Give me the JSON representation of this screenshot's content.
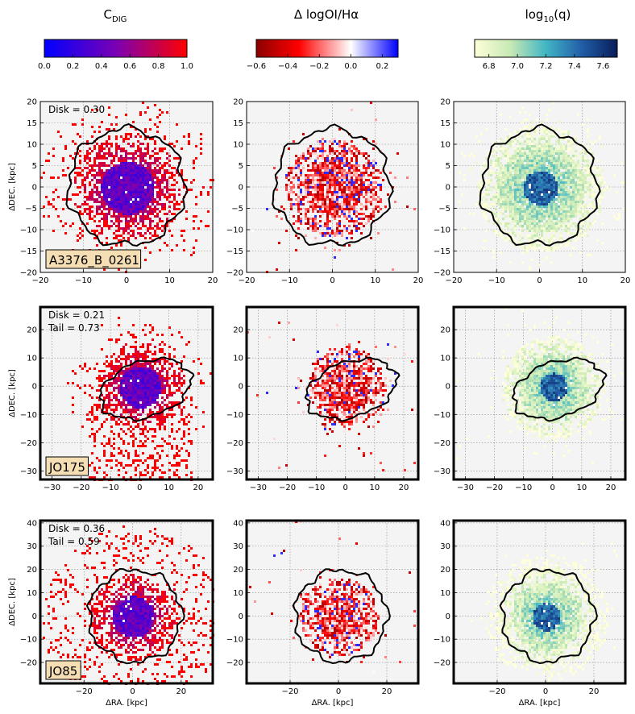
{
  "figure": {
    "columns": [
      {
        "title_main": "C",
        "title_sub": "DIG",
        "title_tail": "",
        "colorbar": {
          "stops": [
            "#0000ff",
            "#7a00b5",
            "#ff0000"
          ],
          "ticks": [
            {
              "label": "0.0",
              "value": 0.0
            },
            {
              "label": "0.2",
              "value": 0.2
            },
            {
              "label": "0.4",
              "value": 0.4
            },
            {
              "label": "0.6",
              "value": 0.6
            },
            {
              "label": "0.8",
              "value": 0.8
            },
            {
              "label": "1.0",
              "value": 1.0
            }
          ],
          "range": [
            0.0,
            1.0
          ]
        }
      },
      {
        "title_main": "Δ logOI/Hα",
        "title_sub": "",
        "title_tail": "",
        "colorbar": {
          "stops": [
            "#8b0000",
            "#ff0000",
            "#ffffff",
            "#0000ff"
          ],
          "stop_positions": [
            0.0,
            0.3,
            0.667,
            1.0
          ],
          "ticks": [
            {
              "label": "−0.6",
              "value": -0.6
            },
            {
              "label": "−0.4",
              "value": -0.4
            },
            {
              "label": "−0.2",
              "value": -0.2
            },
            {
              "label": "0.0",
              "value": 0.0
            },
            {
              "label": "0.2",
              "value": 0.2
            }
          ],
          "range": [
            -0.6,
            0.3
          ]
        }
      },
      {
        "title_main": "log",
        "title_sub": "10",
        "title_tail": "(q)",
        "colorbar": {
          "stops": [
            "#ffffd9",
            "#c7e9b4",
            "#41b6c4",
            "#225ea8",
            "#081d58"
          ],
          "ticks": [
            {
              "label": "6.8",
              "value": 6.8
            },
            {
              "label": "7.0",
              "value": 7.0
            },
            {
              "label": "7.2",
              "value": 7.2
            },
            {
              "label": "7.4",
              "value": 7.4
            },
            {
              "label": "7.6",
              "value": 7.6
            }
          ],
          "range": [
            6.7,
            7.7
          ]
        }
      }
    ],
    "xlabel": "ΔRA. [kpc]",
    "ylabel": "ΔDEC. [kpc]"
  },
  "chart_data": [
    {
      "type": "heatmap",
      "galaxy": "A3376_B_0261",
      "annotation": [
        "Disk = 0.30"
      ],
      "xlim": [
        -20,
        20
      ],
      "ylim": [
        -20,
        20
      ],
      "xticks": [
        -20,
        -10,
        0,
        10,
        20
      ],
      "yticks": [
        -20,
        -15,
        -10,
        -5,
        0,
        5,
        10,
        15,
        20
      ],
      "contour": {
        "shape": "circle",
        "center": [
          0,
          0
        ],
        "radius": 13.5,
        "angle": 0
      },
      "emission_center": [
        0,
        0
      ],
      "cdig_disk_mean": 0.3,
      "delta_oi_ha_disk_mean": -0.45,
      "log_q_disk_mean": 7.05,
      "thick_frame": false
    },
    {
      "type": "heatmap",
      "galaxy": "JO175",
      "annotation": [
        "Disk = 0.21",
        "Tail = 0.73"
      ],
      "xlim": [
        -34,
        25
      ],
      "ylim": [
        -33,
        28
      ],
      "xticks": [
        -30,
        -20,
        -10,
        0,
        10,
        20
      ],
      "yticks": [
        -30,
        -20,
        -10,
        0,
        10,
        20
      ],
      "contour": {
        "shape": "ellipse",
        "center": [
          2,
          -1
        ],
        "rx": 16,
        "ry": 9.5,
        "angle": -18
      },
      "emission_center": [
        0,
        0
      ],
      "cdig_disk_mean": 0.21,
      "cdig_tail_mean": 0.73,
      "delta_oi_ha_disk_mean": -0.3,
      "log_q_disk_mean": 7.1,
      "thick_frame": true
    },
    {
      "type": "heatmap",
      "galaxy": "JO85",
      "annotation": [
        "Disk = 0.36",
        "Tail = 0.59"
      ],
      "xlim": [
        -38,
        33
      ],
      "ylim": [
        -29,
        41
      ],
      "xticks": [
        -20,
        0,
        20
      ],
      "yticks": [
        -20,
        -10,
        0,
        10,
        20,
        30,
        40
      ],
      "contour": {
        "shape": "circle",
        "center": [
          1,
          0
        ],
        "radius": 19,
        "angle": 0
      },
      "emission_center": [
        0,
        0
      ],
      "cdig_disk_mean": 0.36,
      "cdig_tail_mean": 0.59,
      "delta_oi_ha_disk_mean": -0.35,
      "log_q_disk_mean": 7.3,
      "thick_frame": true
    }
  ]
}
